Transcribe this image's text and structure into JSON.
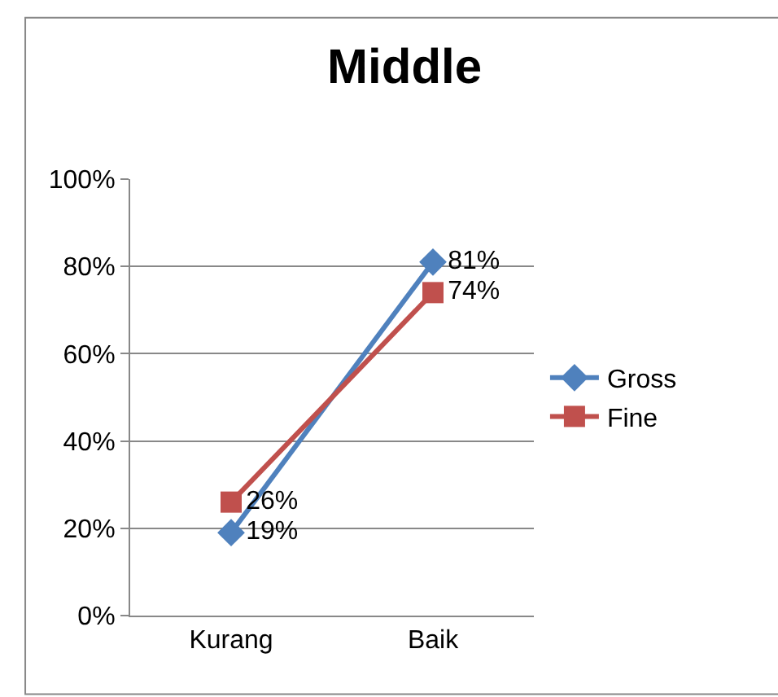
{
  "chart_data": {
    "type": "line",
    "title": "Middle",
    "categories": [
      "Kurang",
      "Baik"
    ],
    "series": [
      {
        "name": "Gross",
        "color": "#4f81bd",
        "marker": "diamond",
        "values": [
          19,
          81
        ],
        "value_labels": [
          "19%",
          "81%"
        ]
      },
      {
        "name": "Fine",
        "color": "#c0504d",
        "marker": "square",
        "values": [
          26,
          74
        ],
        "value_labels": [
          "26%",
          "74%"
        ]
      }
    ],
    "ylim": [
      0,
      100
    ],
    "yticks": [
      {
        "value": 0,
        "label": "0%"
      },
      {
        "value": 20,
        "label": "20%"
      },
      {
        "value": 40,
        "label": "40%"
      },
      {
        "value": 60,
        "label": "60%"
      },
      {
        "value": 80,
        "label": "80%"
      },
      {
        "value": 100,
        "label": "100%"
      }
    ],
    "grid": "y",
    "legend": "right",
    "line_style": "solid"
  }
}
